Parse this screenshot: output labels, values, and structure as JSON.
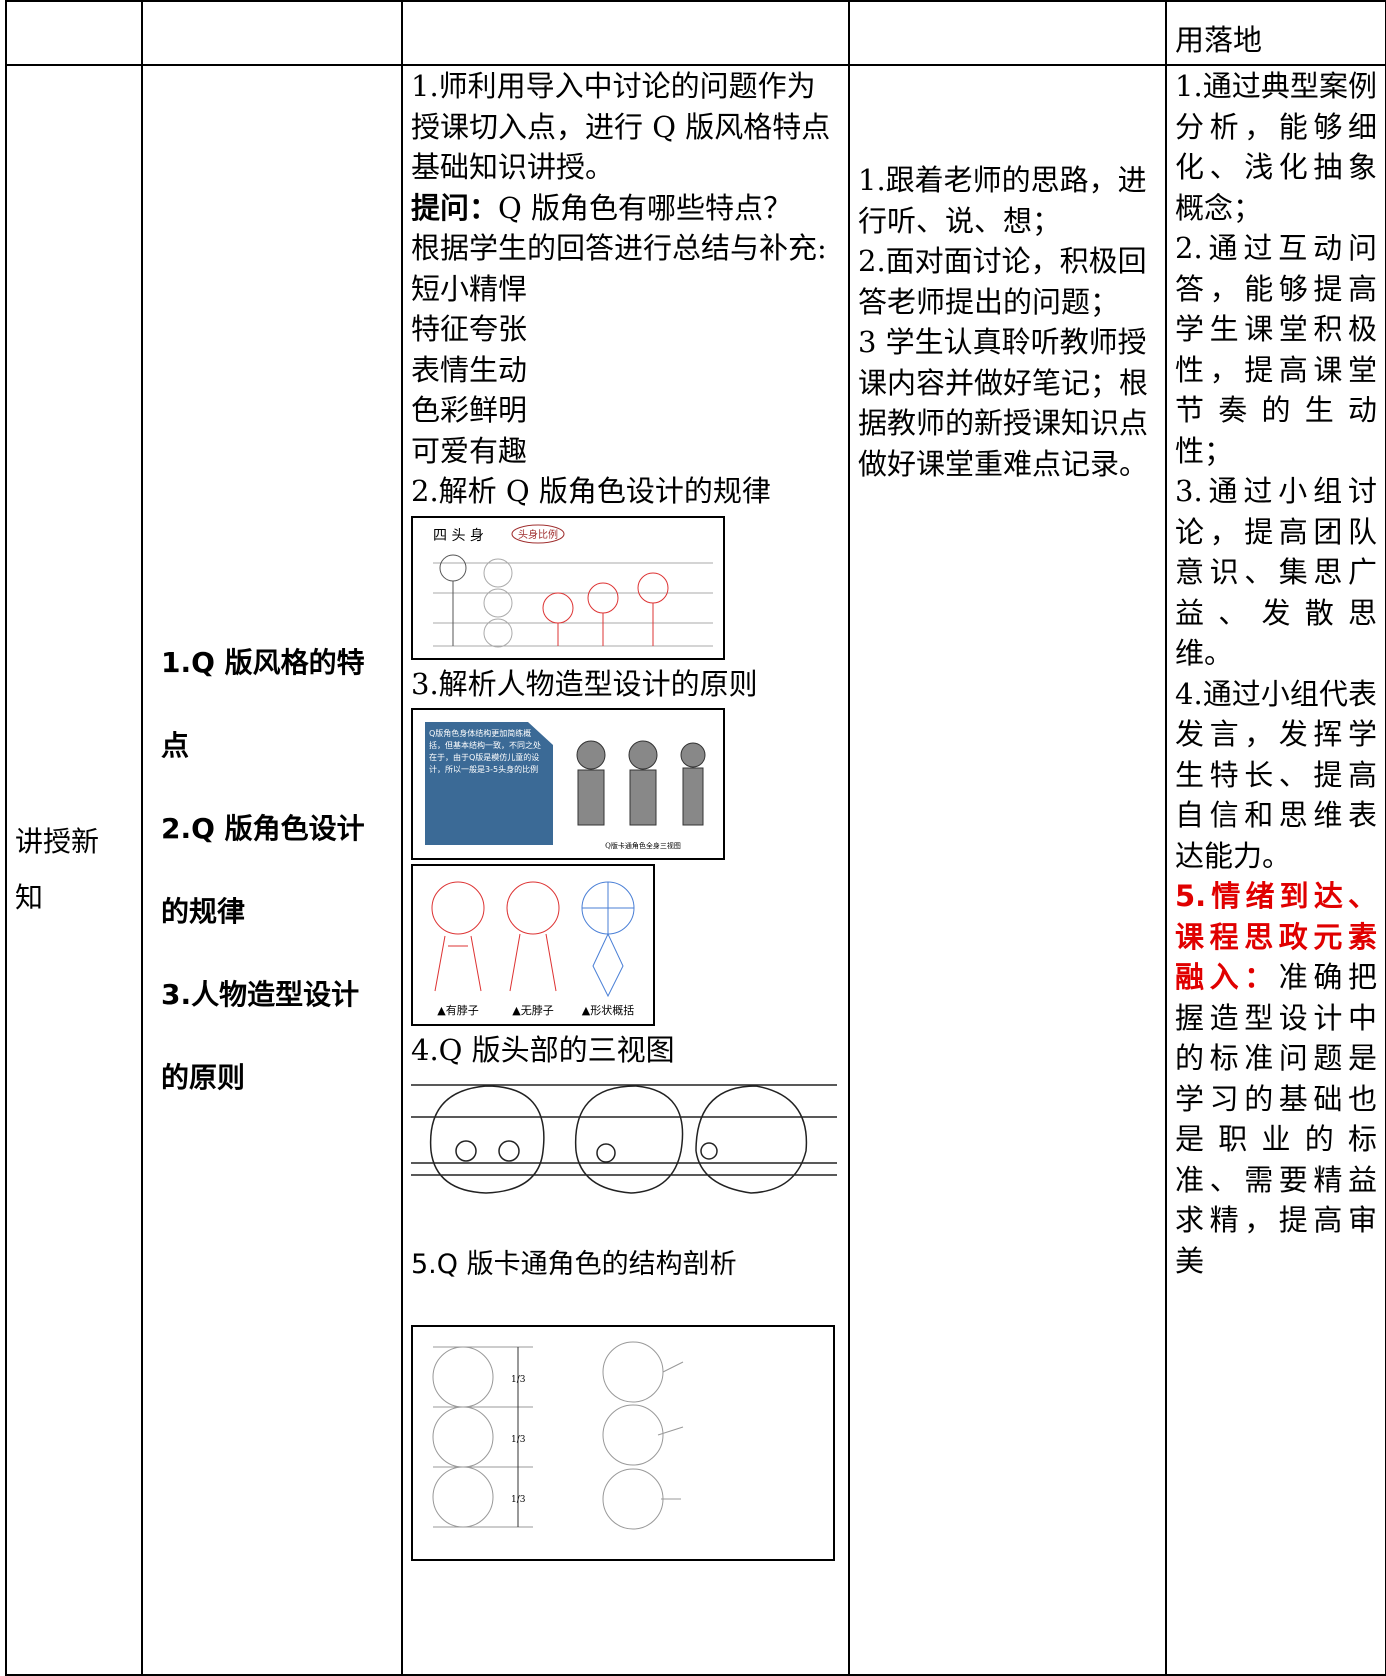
{
  "table": {
    "top_row": {
      "design_intent": "用落地"
    },
    "main_row": {
      "section": "讲授新知",
      "objectives": [
        "1.Q 版风格的特点",
        "2.Q 版角色设计的规律",
        "3.人物造型设计的原则"
      ],
      "teacher": {
        "intro": "1.师利用导入中讨论的问题作为授课切入点，进行 Q 版风格特点基础知识讲授。",
        "question_key": "提问：",
        "question": "Q 版角色有哪些特点？",
        "summary": "根据学生的回答进行总结与补充:",
        "features": [
          "短小精悍",
          "特征夸张",
          "表情生动",
          "色彩鲜明",
          "可爱有趣"
        ],
        "step2": "2.解析 Q 版角色设计的规律",
        "figure1": {
          "title": "四 头 身",
          "tag": "头身比例"
        },
        "step3": "3.解析人物造型设计的原则",
        "figure2": {
          "text": "Q版角色身体结构更加简练概括，但基本结构一致，不同之处在于，由于Q版是模仿儿童的设计，所以一般是3-5头身的比例",
          "caption": "Q版卡通角色全身三视图"
        },
        "figure3": {
          "labels": [
            "▲有脖子",
            "▲无脖子",
            "▲形状概括"
          ]
        },
        "step4": "4.Q 版头部的三视图",
        "step5": "5.Q 版卡通角色的结构剖析",
        "figure5": {
          "ratios": [
            "1/3",
            "1/3",
            "1/3"
          ]
        }
      },
      "student": [
        "1.跟着老师的思路，进行听、说、想；",
        "2.面对面讨论，积极回答老师提出的问题；",
        "3 学生认真聆听教师授课内容并做好笔记；根据教师的新授课知识点做好课堂重难点记录。"
      ],
      "design": [
        "1.通过典型案例分析，能够细化、浅化抽象概念；",
        "2.通过互动问答，能够提高学生课堂积极性，提高课堂节奏的生动性；",
        "3.通过小组讨论，提高团队意识、集思广益、发散思维。",
        "4.通过小组代表发言，发挥学生特长、提高自信和思维表达能力。"
      ],
      "design_key": "5.情绪到达、课程思政元素融入：",
      "design_last": "准确把握造型设计中的标准问题是学习的基础也是职业的标准、需要精益求精，提高审美"
    }
  }
}
